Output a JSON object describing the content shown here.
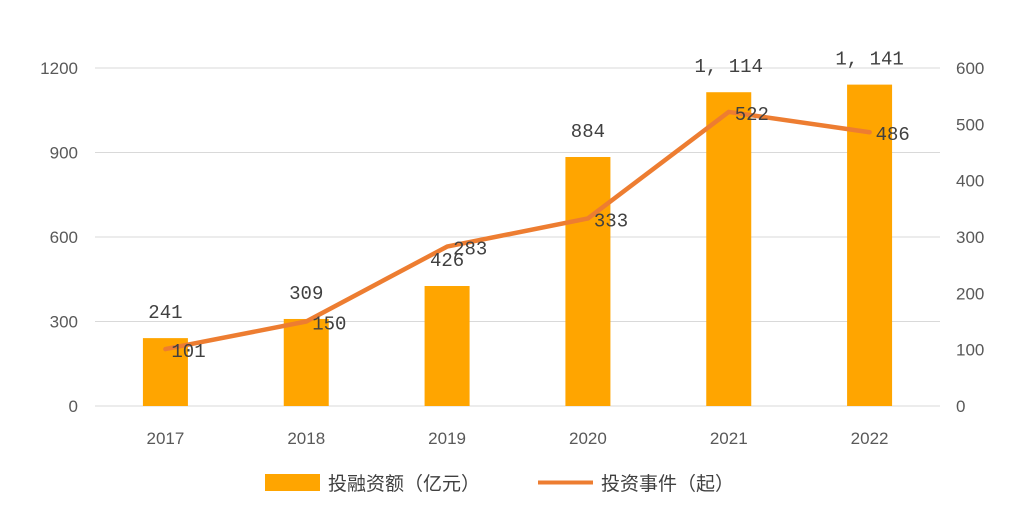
{
  "chart_data": {
    "type": "bar+line",
    "categories": [
      "2017",
      "2018",
      "2019",
      "2020",
      "2021",
      "2022"
    ],
    "series": [
      {
        "name": "投融资额（亿元）",
        "type": "bar",
        "axis": "left",
        "values": [
          241,
          309,
          426,
          884,
          1114,
          1141
        ],
        "labels": [
          "241",
          "309",
          "426",
          "884",
          "1, 114",
          "1, 141"
        ],
        "color": "#FFA500"
      },
      {
        "name": "投资事件（起）",
        "type": "line",
        "axis": "right",
        "values": [
          101,
          150,
          283,
          333,
          522,
          486
        ],
        "labels": [
          "101",
          "150",
          "283",
          "333",
          "522",
          "486"
        ],
        "color": "#ED7D31"
      }
    ],
    "y_left": {
      "ticks": [
        "0",
        "300",
        "600",
        "900",
        "1200"
      ],
      "range": [
        0,
        1200
      ]
    },
    "y_right": {
      "ticks": [
        "0",
        "100",
        "200",
        "300",
        "400",
        "500",
        "600"
      ],
      "range": [
        0,
        600
      ]
    },
    "grid": true,
    "legend_position": "bottom"
  }
}
